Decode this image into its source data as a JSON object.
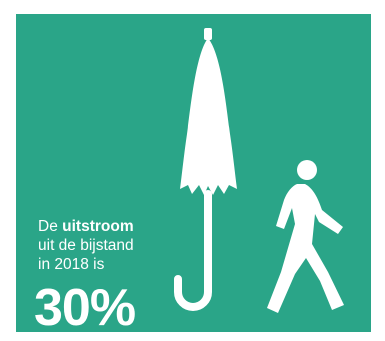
{
  "infographic": {
    "caption_prefix": "De",
    "caption_emphasis": "uitstroom",
    "caption_line2": "uit de bijstand",
    "caption_line3": "in 2018 is",
    "percentage": "30%",
    "background_color": "#2aa588",
    "foreground_color": "#ffffff",
    "icons": [
      "umbrella-icon",
      "walking-person-icon"
    ]
  }
}
